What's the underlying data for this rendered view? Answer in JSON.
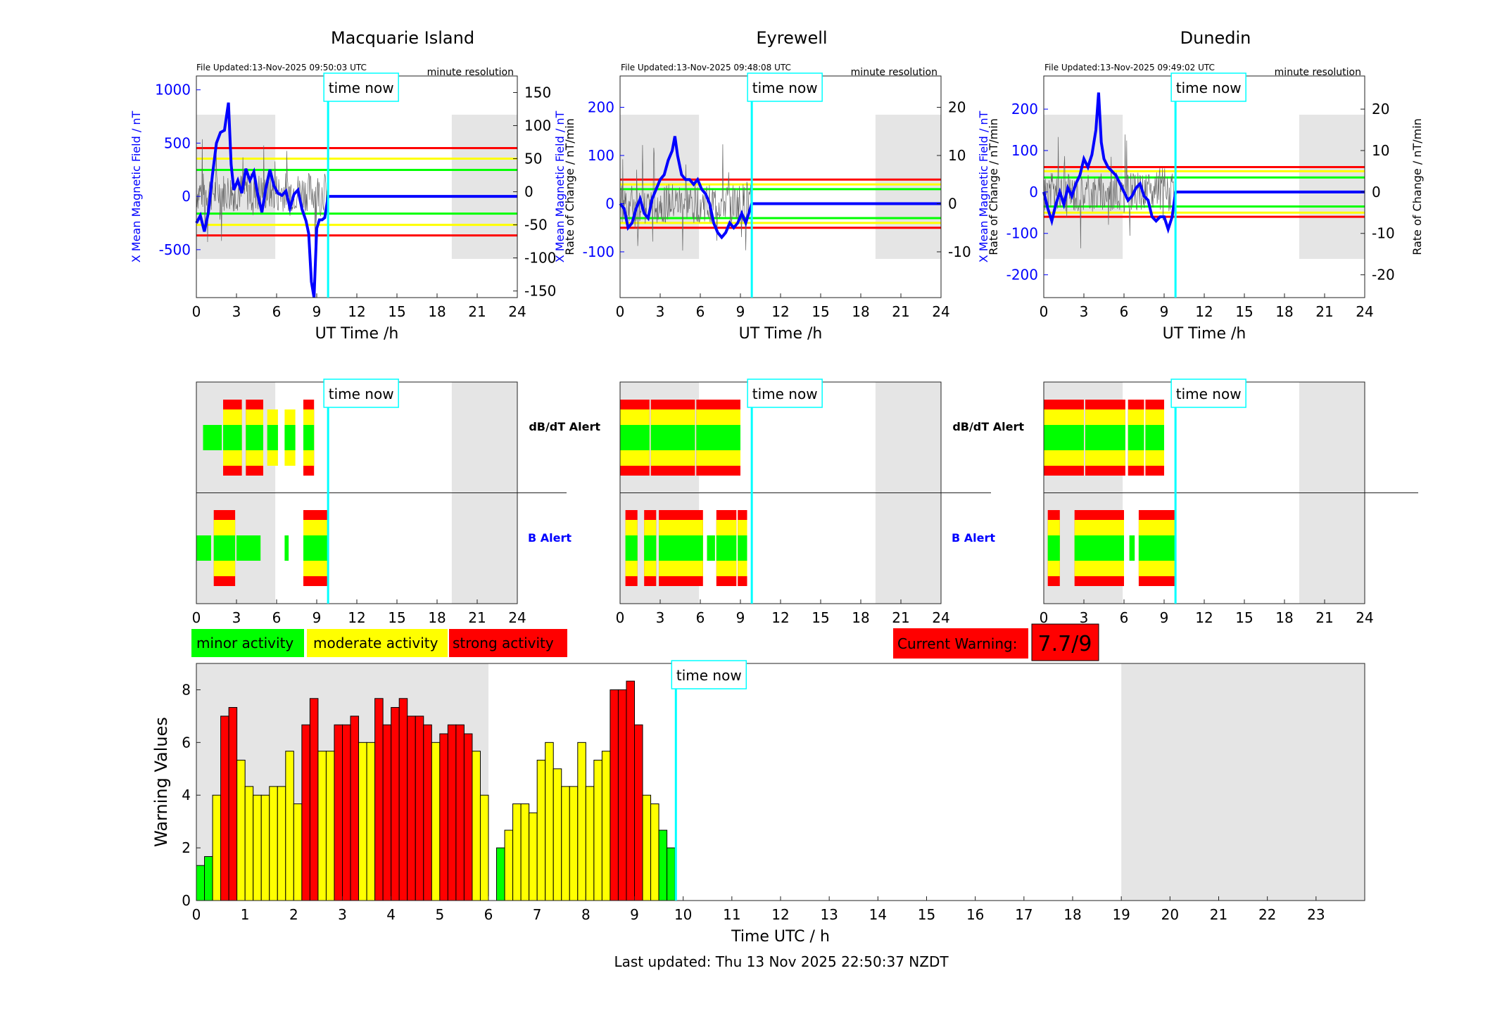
{
  "colors": {
    "minor": "#00ff00",
    "moderate": "#ffff00",
    "strong": "#ff0000",
    "time_now": "#00ffff",
    "b_field": "#0000ff",
    "rate": "#555555",
    "shade": "#e5e5e5"
  },
  "time_now_label": "time now",
  "minute_resolution_label": "minute resolution",
  "dbdt_alert_label": "dB/dT Alert",
  "b_alert_label": "B Alert",
  "legend": {
    "minor": "minor activity",
    "moderate": "moderate activity",
    "strong": "strong activity"
  },
  "current_warning": {
    "label": "Current Warning:",
    "value": "7.7/9"
  },
  "last_updated": "Last updated: Thu 13 Nov 2025 22:50:37 NZDT",
  "chart_data": [
    {
      "type": "line",
      "title": "Macquarie Island",
      "file_updated": "File Updated:13-Nov-2025 09:50:03 UTC",
      "xlabel": "UT Time /h",
      "ylabel_left": "X Mean Magnetic Field / nT",
      "ylabel_right": "Rate of Change / nT/min",
      "xlim": [
        0,
        24
      ],
      "ylim_left": [
        -950,
        1130
      ],
      "ylim_right": [
        -160,
        175
      ],
      "x_ticks": [
        0,
        3,
        6,
        9,
        12,
        15,
        18,
        21,
        24
      ],
      "y_ticks_left": [
        -500,
        0,
        500,
        1000
      ],
      "y_ticks_right": [
        -150,
        -100,
        -50,
        0,
        50,
        100,
        150
      ],
      "time_now": 9.85,
      "night_shading": [
        [
          0,
          5.9
        ],
        [
          19.1,
          24
        ]
      ],
      "thresholds_right": {
        "minor": 33,
        "moderate": 50,
        "strong": 66
      },
      "series": [
        {
          "name": "X Mean Magnetic Field",
          "axis": "left",
          "x": [
            0,
            0.3,
            0.6,
            0.9,
            1.2,
            1.5,
            1.8,
            2.1,
            2.4,
            2.6,
            2.8,
            3.1,
            3.4,
            3.7,
            4.0,
            4.3,
            4.6,
            4.9,
            5.2,
            5.5,
            5.8,
            6.1,
            6.4,
            6.7,
            7.0,
            7.3,
            7.6,
            7.9,
            8.2,
            8.4,
            8.6,
            8.8,
            9.0,
            9.2,
            9.4,
            9.6,
            9.85,
            24
          ],
          "y": [
            -250,
            -180,
            -330,
            -150,
            200,
            500,
            600,
            620,
            880,
            300,
            60,
            150,
            30,
            260,
            150,
            230,
            10,
            -150,
            80,
            250,
            100,
            30,
            10,
            50,
            -110,
            20,
            60,
            -120,
            -230,
            -350,
            -800,
            -950,
            -300,
            -220,
            -220,
            -200,
            0,
            0
          ]
        },
        {
          "name": "Rate of Change",
          "axis": "right",
          "x": [
            0,
            1,
            2,
            3,
            4,
            5,
            6,
            7,
            8,
            9,
            9.85
          ],
          "y": [
            0,
            20,
            -40,
            35,
            -20,
            15,
            -10,
            20,
            -30,
            25,
            0
          ]
        }
      ]
    },
    {
      "type": "line",
      "title": "Eyrewell",
      "file_updated": "File Updated:13-Nov-2025 09:48:08 UTC",
      "xlabel": "UT Time /h",
      "ylabel_left": "X Mean Magnetic Field / nT",
      "ylabel_right": "Rate of Change / nT/min",
      "xlim": [
        0,
        24
      ],
      "ylim_left": [
        -195,
        265
      ],
      "ylim_right": [
        -19.5,
        26.5
      ],
      "x_ticks": [
        0,
        3,
        6,
        9,
        12,
        15,
        18,
        21,
        24
      ],
      "y_ticks_left": [
        -100,
        0,
        100,
        200
      ],
      "y_ticks_right": [
        -10,
        0,
        10,
        20
      ],
      "time_now": 9.85,
      "night_shading": [
        [
          0,
          5.9
        ],
        [
          19.1,
          24
        ]
      ],
      "thresholds_right": {
        "minor": 3,
        "moderate": 4,
        "strong": 5
      },
      "series": [
        {
          "name": "X Mean Magnetic Field",
          "axis": "left",
          "x": [
            0,
            0.3,
            0.6,
            0.9,
            1.2,
            1.5,
            1.8,
            2.1,
            2.4,
            2.7,
            3.0,
            3.3,
            3.6,
            3.9,
            4.1,
            4.3,
            4.6,
            4.9,
            5.2,
            5.5,
            5.8,
            6.1,
            6.4,
            6.7,
            7.0,
            7.3,
            7.6,
            7.9,
            8.2,
            8.5,
            8.8,
            9.1,
            9.4,
            9.85,
            24
          ],
          "y": [
            0,
            -10,
            -50,
            -40,
            -10,
            10,
            -20,
            -30,
            10,
            30,
            50,
            60,
            90,
            110,
            140,
            100,
            60,
            50,
            50,
            40,
            50,
            30,
            20,
            0,
            -40,
            -60,
            -70,
            -60,
            -40,
            -50,
            -40,
            -20,
            -40,
            0,
            0
          ]
        },
        {
          "name": "Rate of Change",
          "axis": "right",
          "x": [
            0,
            1,
            2,
            3,
            4,
            5,
            6,
            7,
            8,
            9,
            9.85
          ],
          "y": [
            0,
            5,
            -6,
            7,
            -5,
            6,
            -4,
            3,
            -3,
            2,
            0
          ]
        }
      ]
    },
    {
      "type": "line",
      "title": "Dunedin",
      "file_updated": "File Updated:13-Nov-2025 09:49:02 UTC",
      "xlabel": "UT Time /h",
      "ylabel_left": "X Mean Magnetic Field / nT",
      "ylabel_right": "Rate of Change / nT/min",
      "xlim": [
        0,
        24
      ],
      "ylim_left": [
        -255,
        280
      ],
      "ylim_right": [
        -25.5,
        28
      ],
      "x_ticks": [
        0,
        3,
        6,
        9,
        12,
        15,
        18,
        21,
        24
      ],
      "y_ticks_left": [
        -200,
        -100,
        0,
        100,
        200
      ],
      "y_ticks_right": [
        -20,
        -10,
        0,
        10,
        20
      ],
      "time_now": 9.85,
      "night_shading": [
        [
          0,
          5.9
        ],
        [
          19.1,
          24
        ]
      ],
      "thresholds_right": {
        "minor": 3.5,
        "moderate": 5,
        "strong": 6
      },
      "series": [
        {
          "name": "X Mean Magnetic Field",
          "axis": "left",
          "x": [
            0,
            0.3,
            0.6,
            0.9,
            1.2,
            1.5,
            1.8,
            2.1,
            2.4,
            2.7,
            3.0,
            3.3,
            3.6,
            3.9,
            4.1,
            4.3,
            4.5,
            4.8,
            5.1,
            5.4,
            5.7,
            6.0,
            6.3,
            6.6,
            6.9,
            7.2,
            7.5,
            7.8,
            8.1,
            8.4,
            8.7,
            9.0,
            9.3,
            9.6,
            9.85,
            24
          ],
          "y": [
            0,
            -40,
            -70,
            -30,
            0,
            -30,
            10,
            -10,
            20,
            40,
            80,
            60,
            90,
            150,
            240,
            120,
            80,
            60,
            50,
            40,
            20,
            0,
            -20,
            -10,
            10,
            20,
            -10,
            -20,
            -60,
            -70,
            -60,
            -60,
            -90,
            -60,
            0,
            0
          ]
        },
        {
          "name": "Rate of Change",
          "axis": "right",
          "x": [
            0,
            1,
            2,
            3,
            4,
            5,
            6,
            7,
            8,
            9,
            9.85
          ],
          "y": [
            0,
            6,
            -7,
            8,
            -6,
            7,
            -4,
            4,
            -3,
            3,
            0
          ]
        }
      ]
    },
    {
      "type": "bar",
      "xlabel": "Time UTC / h",
      "ylabel": "Warning Values",
      "xlim": [
        0,
        24
      ],
      "ylim": [
        0,
        9
      ],
      "x_ticks": [
        0,
        1,
        2,
        3,
        4,
        5,
        6,
        7,
        8,
        9,
        10,
        11,
        12,
        13,
        14,
        15,
        16,
        17,
        18,
        19,
        20,
        21,
        22,
        23
      ],
      "y_ticks": [
        0,
        2,
        4,
        6,
        8
      ],
      "time_now": 9.85,
      "night_shading": [
        [
          0,
          6.0
        ],
        [
          19.0,
          24
        ]
      ],
      "bar_width_h": 0.1667,
      "bar_start": [
        0,
        0.1667,
        0.3333,
        0.5,
        0.6667,
        0.8333,
        1.0,
        1.1667,
        1.3333,
        1.5,
        1.6667,
        1.8333,
        2.0,
        2.1667,
        2.3333,
        2.5,
        2.6667,
        2.8333,
        3.0,
        3.1667,
        3.3333,
        3.5,
        3.6667,
        3.8333,
        4.0,
        4.1667,
        4.3333,
        4.5,
        4.6667,
        4.8333,
        5.0,
        5.1667,
        5.3333,
        5.5,
        5.6667,
        5.8333,
        6.1667,
        6.3333,
        6.5,
        6.6667,
        6.8333,
        7.0,
        7.1667,
        7.3333,
        7.5,
        7.6667,
        7.8333,
        8.0,
        8.1667,
        8.3333,
        8.5,
        8.6667,
        8.8333,
        9.0,
        9.1667,
        9.3333,
        9.5,
        9.6667
      ],
      "values": [
        1.33,
        1.67,
        4.0,
        7.0,
        7.33,
        5.33,
        4.33,
        4.0,
        4.0,
        4.33,
        4.33,
        5.67,
        3.67,
        6.67,
        7.67,
        5.67,
        5.67,
        6.67,
        6.67,
        7.0,
        6.0,
        6.0,
        7.67,
        6.67,
        7.33,
        7.67,
        7.0,
        7.0,
        6.67,
        6.0,
        6.33,
        6.67,
        6.67,
        6.33,
        5.67,
        4.0,
        2.0,
        2.67,
        3.67,
        3.67,
        3.33,
        5.33,
        6.0,
        5.0,
        4.33,
        4.33,
        6.0,
        4.33,
        5.33,
        5.67,
        8.0,
        8.0,
        8.33,
        6.67,
        4.0,
        3.67,
        2.67,
        2.0
      ],
      "levels": [
        "minor",
        "minor",
        "moderate",
        "strong",
        "strong",
        "moderate",
        "moderate",
        "moderate",
        "moderate",
        "moderate",
        "moderate",
        "moderate",
        "moderate",
        "strong",
        "strong",
        "moderate",
        "moderate",
        "strong",
        "strong",
        "strong",
        "moderate",
        "moderate",
        "strong",
        "strong",
        "strong",
        "strong",
        "strong",
        "strong",
        "strong",
        "moderate",
        "strong",
        "strong",
        "strong",
        "strong",
        "moderate",
        "moderate",
        "minor",
        "moderate",
        "moderate",
        "moderate",
        "moderate",
        "moderate",
        "moderate",
        "moderate",
        "moderate",
        "moderate",
        "moderate",
        "moderate",
        "moderate",
        "moderate",
        "strong",
        "strong",
        "strong",
        "strong",
        "moderate",
        "moderate",
        "minor",
        "minor"
      ]
    }
  ]
}
